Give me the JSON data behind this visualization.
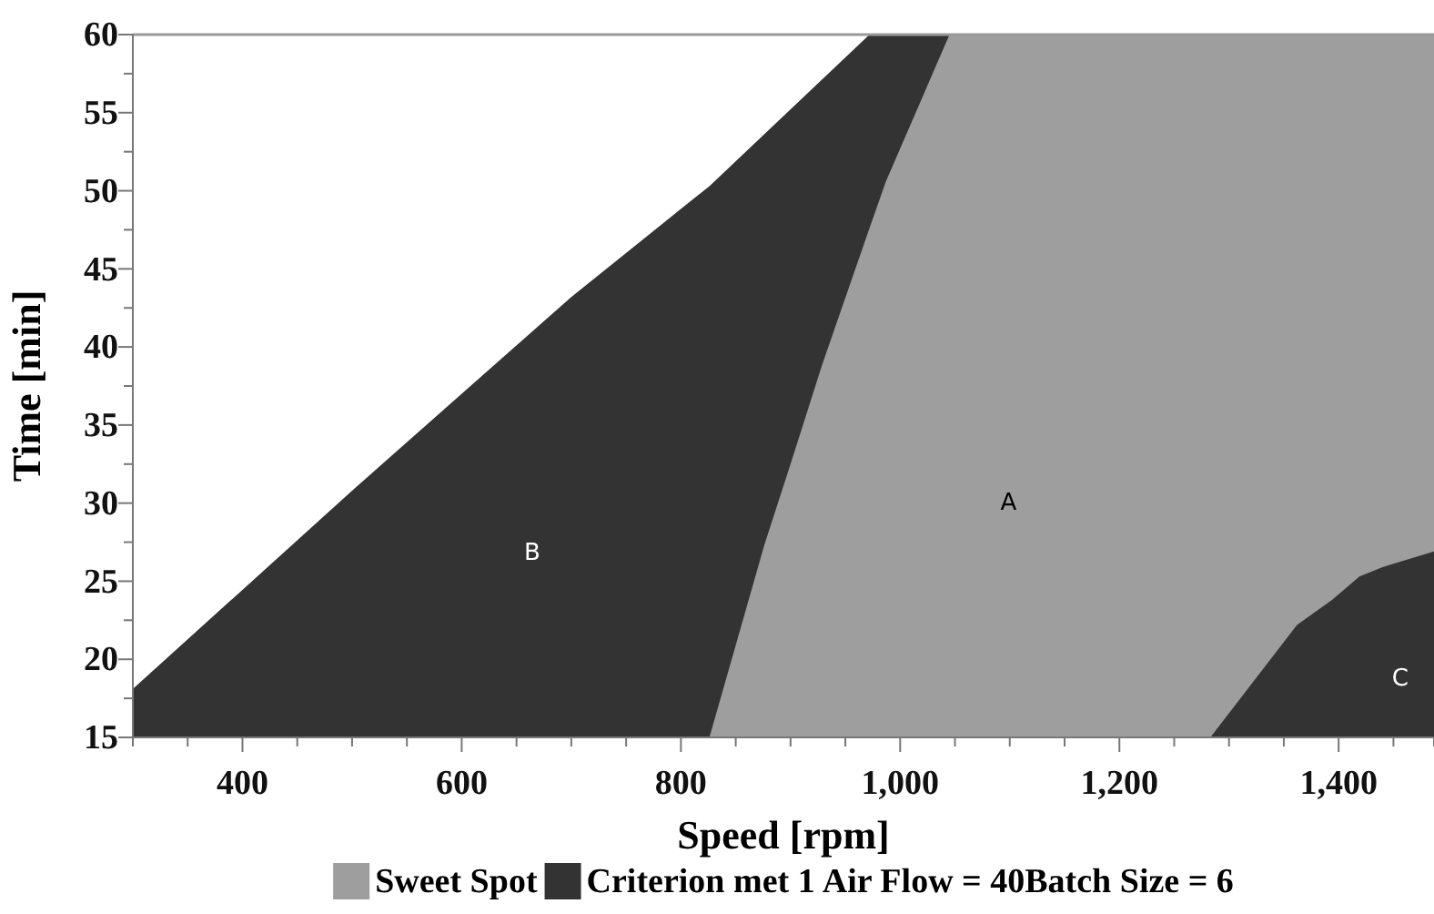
{
  "chart_data": {
    "type": "area",
    "xlabel": "Speed [rpm]",
    "ylabel": "Time [min]",
    "series": [
      {
        "name": "Criterion met 1",
        "color": "#333333",
        "x": [
          300,
          500,
          700,
          810,
          826,
          972,
          987,
          1045
        ],
        "values": [
          18.1,
          30.8,
          43.2,
          49.4,
          50.3,
          60,
          60,
          60
        ]
      },
      {
        "name": "Sweet Spot",
        "color": "#9e9e9e",
        "x": [
          826,
          876,
          900,
          929,
          972,
          987,
          1045,
          1283,
          1362,
          1394,
          1419,
          1440,
          1487
        ],
        "values": [
          15,
          27.3,
          32.5,
          38.9,
          47.6,
          50.6,
          60,
          60,
          60,
          60,
          60,
          60,
          60
        ]
      },
      {
        "color": "#333333",
        "x": [
          1283,
          1362,
          1394,
          1419,
          1440,
          1487
        ],
        "values": [
          15,
          22.2,
          23.8,
          25.3,
          25.9,
          26.9
        ]
      }
    ],
    "xlim": [
      300,
      1487
    ],
    "ylim": [
      15,
      60
    ],
    "xticks": [
      {
        "value": 300,
        "label": null
      },
      {
        "value": 350,
        "label": null
      },
      400,
      {
        "value": 450,
        "label": null
      },
      {
        "value": 500,
        "label": null
      },
      {
        "value": 550,
        "label": null
      },
      600,
      {
        "value": 650,
        "label": null
      },
      {
        "value": 700,
        "label": null
      },
      {
        "value": 750,
        "label": null
      },
      800,
      {
        "value": 850,
        "label": null
      },
      {
        "value": 900,
        "label": null
      },
      {
        "value": 950,
        "label": null
      },
      {
        "value": 1000,
        "label": "1,000"
      },
      {
        "value": 1050,
        "label": null
      },
      {
        "value": 1100,
        "label": null
      },
      {
        "value": 1150,
        "label": null
      },
      {
        "value": 1200,
        "label": "1,200"
      },
      {
        "value": 1250,
        "label": null
      },
      {
        "value": 1300,
        "label": null
      },
      {
        "value": 1350,
        "label": null
      },
      {
        "value": 1400,
        "label": "1,400"
      },
      {
        "value": 1450,
        "label": null
      }
    ],
    "yticks": [
      15,
      {
        "value": 17.5,
        "label": null
      },
      20,
      {
        "value": 22.5,
        "label": null
      },
      25,
      {
        "value": 27.5,
        "label": null
      },
      30,
      {
        "value": 32.5,
        "label": null
      },
      35,
      {
        "value": 37.5,
        "label": null
      },
      40,
      {
        "value": 42.5,
        "label": null
      },
      45,
      {
        "value": 47.5,
        "label": null
      },
      50,
      {
        "value": 52.5,
        "label": null
      },
      55,
      {
        "value": 57.5,
        "label": null
      },
      60
    ],
    "legend": "bottom",
    "annotations": [
      "A",
      "B",
      "C",
      "Air Flow = 40",
      "Batch Size = 6"
    ]
  }
}
